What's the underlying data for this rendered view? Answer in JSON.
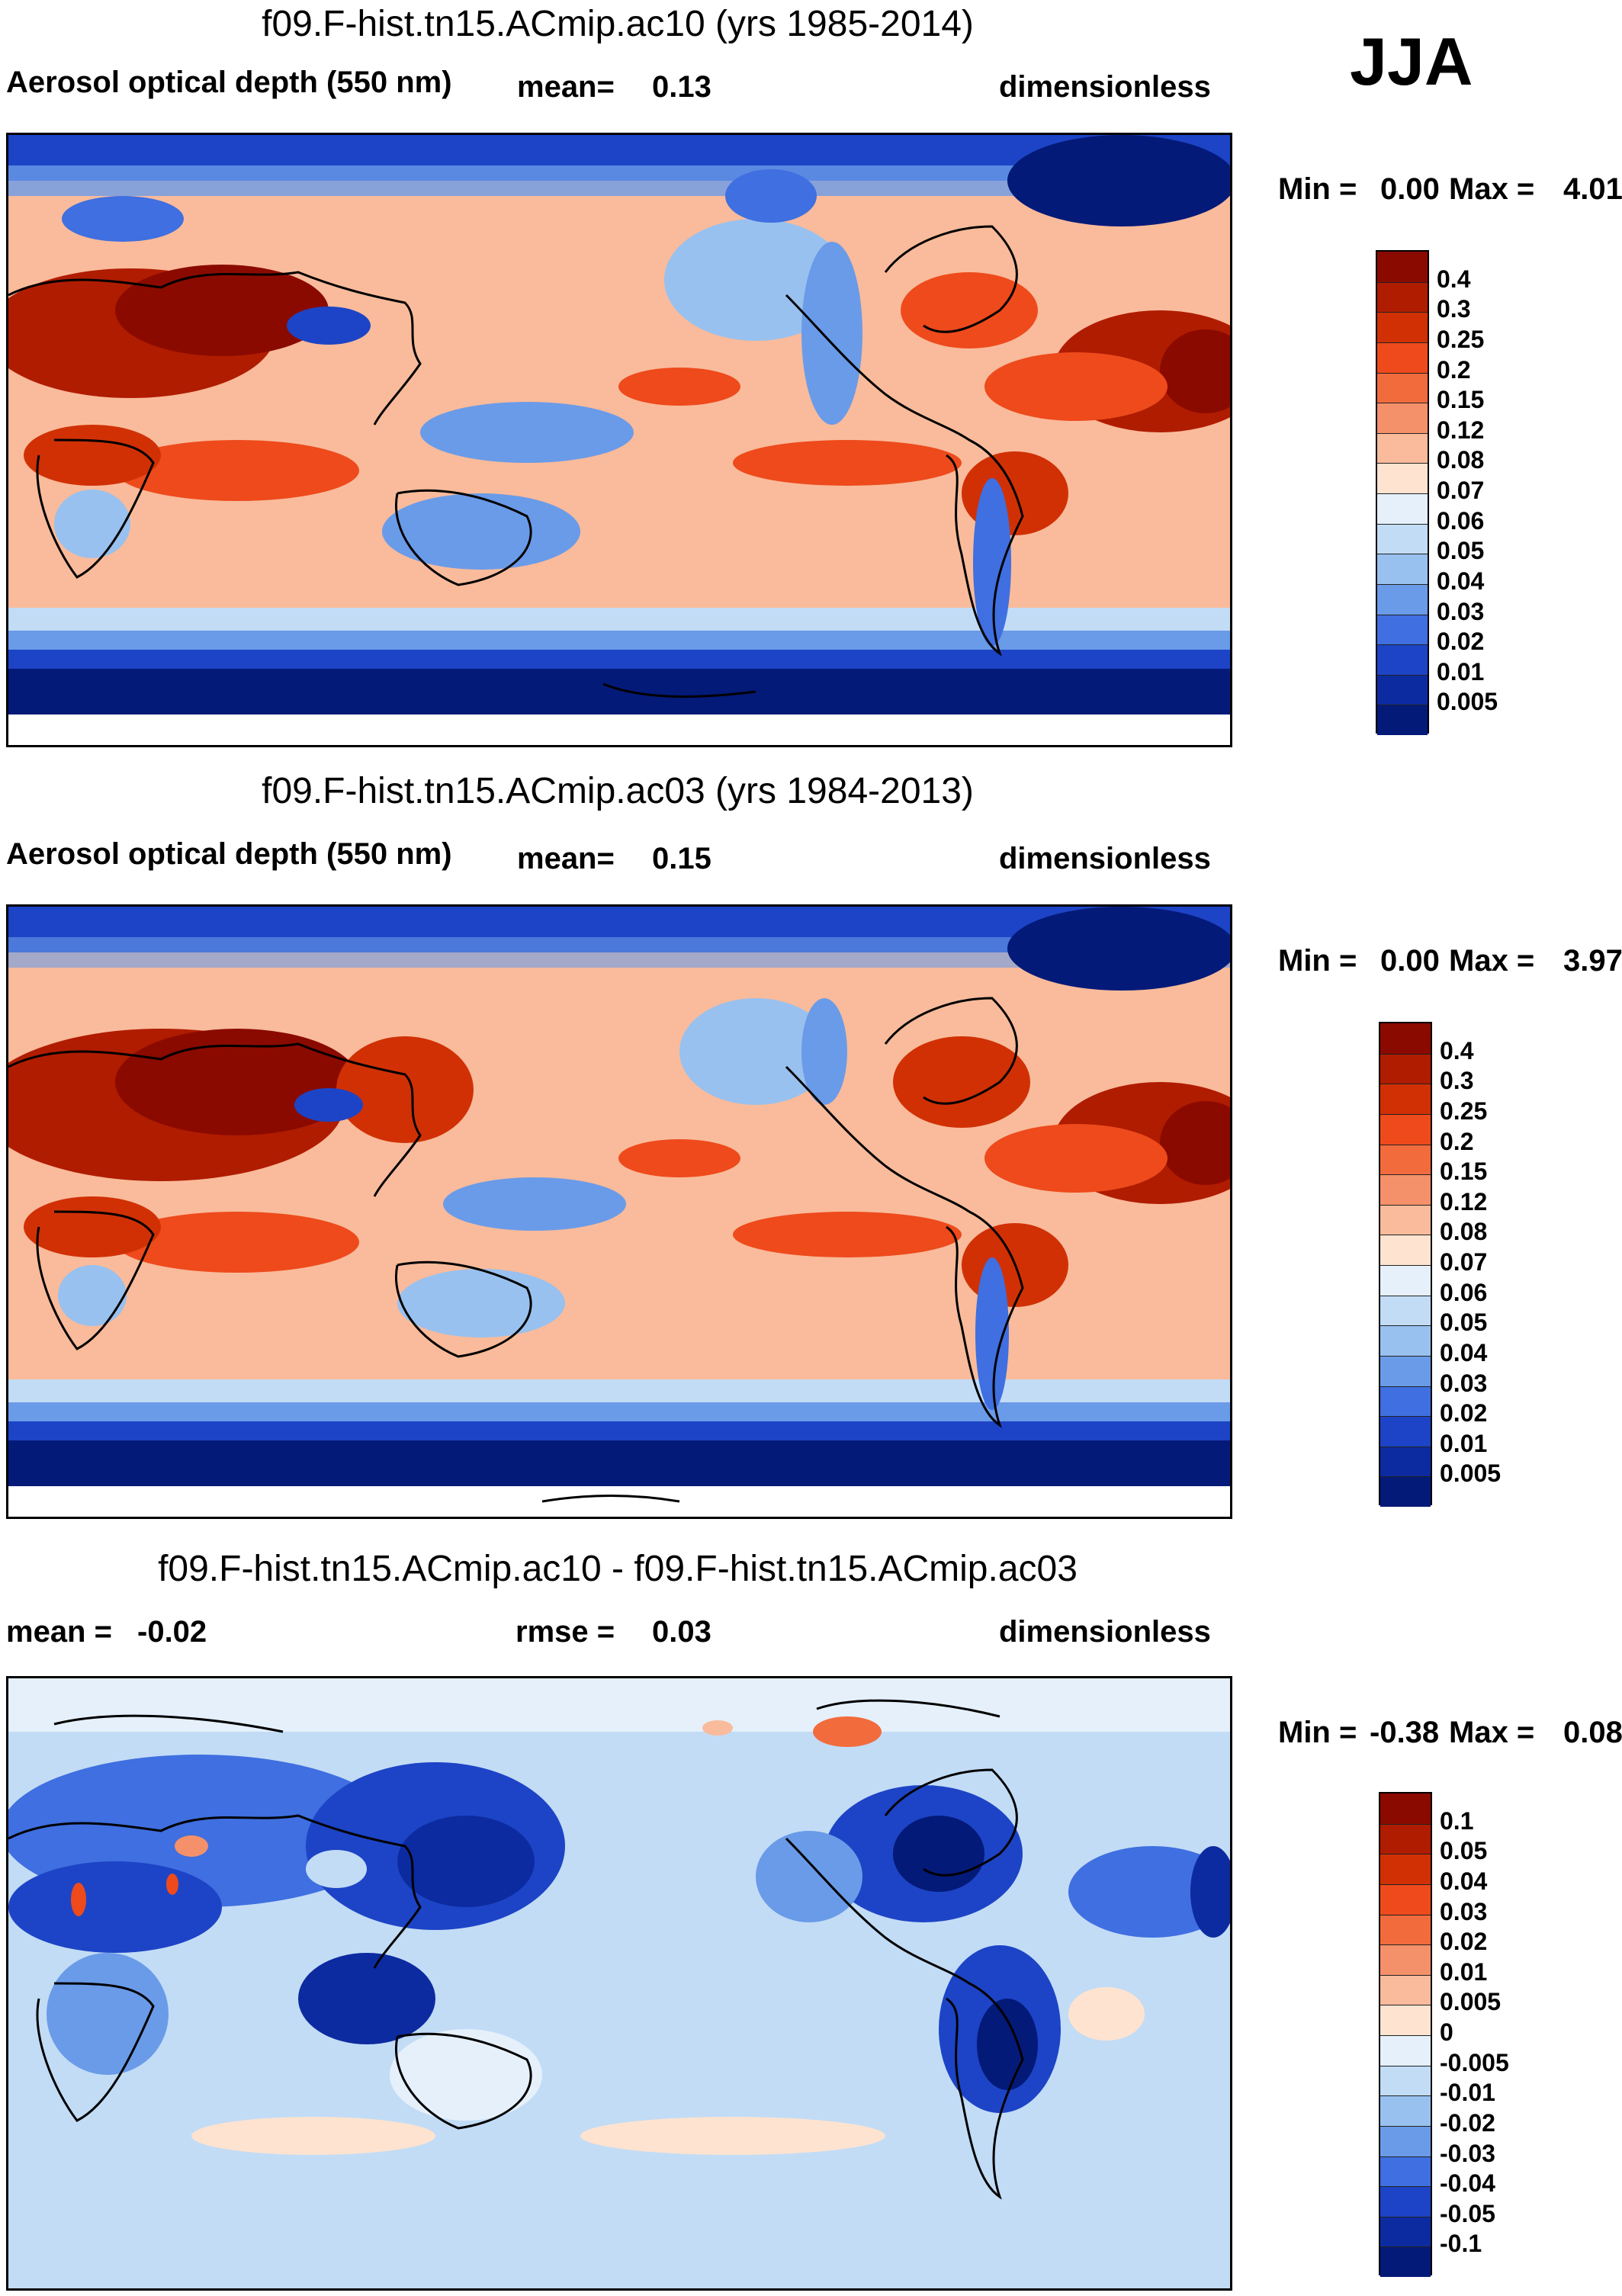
{
  "season": "JJA",
  "panels": [
    {
      "id": "p1",
      "title": "f09.F-hist.tn15.ACmip.ac10 (yrs 1985-2014)",
      "left_label": "Aerosol optical depth (550 nm)",
      "mean_label": "mean=",
      "mean_value": "0.13",
      "units": "dimensionless",
      "min_label": "Min =",
      "min_value": "0.00",
      "max_label": "Max =",
      "max_value": "4.01",
      "palette": "aod",
      "colorbar": [
        "0.4",
        "0.3",
        "0.25",
        "0.2",
        "0.15",
        "0.12",
        "0.08",
        "0.07",
        "0.06",
        "0.05",
        "0.04",
        "0.03",
        "0.02",
        "0.01",
        "0.005"
      ]
    },
    {
      "id": "p2",
      "title": "f09.F-hist.tn15.ACmip.ac03 (yrs 1984-2013)",
      "left_label": "Aerosol optical depth (550 nm)",
      "mean_label": "mean=",
      "mean_value": "0.15",
      "units": "dimensionless",
      "min_label": "Min =",
      "min_value": "0.00",
      "max_label": "Max =",
      "max_value": "3.97",
      "palette": "aod",
      "colorbar": [
        "0.4",
        "0.3",
        "0.25",
        "0.2",
        "0.15",
        "0.12",
        "0.08",
        "0.07",
        "0.06",
        "0.05",
        "0.04",
        "0.03",
        "0.02",
        "0.01",
        "0.005"
      ]
    },
    {
      "id": "p3",
      "title": "f09.F-hist.tn15.ACmip.ac10 - f09.F-hist.tn15.ACmip.ac03",
      "left_label": "mean = ",
      "mean_value": "-0.02",
      "rmse_label": "rmse =",
      "rmse_value": "0.03",
      "units": "dimensionless",
      "min_label": "Min =",
      "min_value": "-0.38",
      "max_label": "Max =",
      "max_value": "0.08",
      "palette": "diff",
      "colorbar": [
        "0.1",
        "0.05",
        "0.04",
        "0.03",
        "0.02",
        "0.01",
        "0.005",
        "0",
        "-0.005",
        "-0.01",
        "-0.02",
        "-0.03",
        "-0.04",
        "-0.05",
        "-0.1"
      ]
    }
  ],
  "colors": {
    "aod": [
      "#8b0a00",
      "#b01c00",
      "#d13005",
      "#ee4a1c",
      "#f26b3d",
      "#f5916a",
      "#f9bb9b",
      "#fde3d0",
      "#e5f0fb",
      "#c2dcf6",
      "#98c1ef",
      "#6a9be8",
      "#3f6fe0",
      "#1d44c6",
      "#0c2ba0",
      "#041a78"
    ],
    "diff": [
      "#8b0a00",
      "#b01c00",
      "#d13005",
      "#ee4a1c",
      "#f26b3d",
      "#f5916a",
      "#f9bb9b",
      "#fde3d0",
      "#e5f0fb",
      "#c2dcf6",
      "#98c1ef",
      "#6a9be8",
      "#3f6fe0",
      "#1d44c6",
      "#0c2ba0",
      "#041a78"
    ]
  }
}
